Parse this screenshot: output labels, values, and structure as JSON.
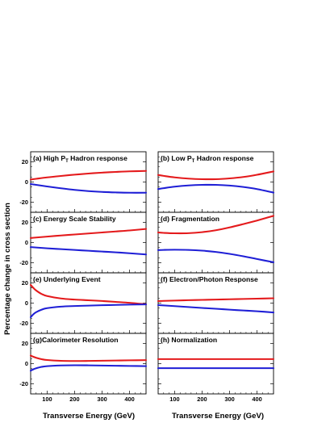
{
  "chart_data": {
    "type": "line",
    "layout": "4x2 grid of panels",
    "ylabel": "Percentage change in cross section",
    "xlabel": "Transverse Energy (GeV)",
    "xlim": [
      40,
      460
    ],
    "ylim": [
      -30,
      30
    ],
    "xticks": [
      100,
      200,
      300,
      400
    ],
    "yticks": [
      20,
      0,
      -20
    ],
    "grid": false,
    "colors": {
      "upper": "#e41a1c",
      "lower": "#1f1fd6"
    },
    "panels": [
      {
        "id": "a",
        "title_pre": "(a) High P",
        "title_sub": "T",
        "title_post": " Hadron response",
        "x": [
          40,
          60,
          100,
          150,
          200,
          250,
          300,
          350,
          400,
          460
        ],
        "upper": [
          2.5,
          3.2,
          4.6,
          6.0,
          7.3,
          8.4,
          9.3,
          10.0,
          10.6,
          11.0
        ],
        "lower": [
          -2.0,
          -2.8,
          -4.4,
          -6.2,
          -7.8,
          -9.0,
          -9.8,
          -10.3,
          -10.6,
          -10.6
        ]
      },
      {
        "id": "b",
        "title_pre": "(b) Low P",
        "title_sub": "T",
        "title_post": " Hadron response",
        "x": [
          40,
          60,
          100,
          150,
          200,
          250,
          300,
          350,
          400,
          460
        ],
        "upper": [
          7.0,
          6.1,
          4.6,
          3.4,
          2.8,
          2.8,
          3.6,
          5.0,
          7.2,
          10.5
        ],
        "lower": [
          -7.0,
          -6.1,
          -4.6,
          -3.4,
          -2.8,
          -2.8,
          -3.5,
          -4.9,
          -7.0,
          -10.5
        ]
      },
      {
        "id": "c",
        "title_pre": "(c) Energy Scale Stability",
        "title_sub": "",
        "title_post": "",
        "x": [
          40,
          60,
          100,
          150,
          200,
          250,
          300,
          350,
          400,
          460
        ],
        "upper": [
          4.5,
          5.0,
          5.9,
          7.0,
          8.0,
          9.0,
          10.0,
          11.0,
          12.0,
          13.5
        ],
        "lower": [
          -4.5,
          -4.9,
          -5.7,
          -6.5,
          -7.3,
          -8.1,
          -8.9,
          -9.7,
          -10.6,
          -11.8
        ]
      },
      {
        "id": "d",
        "title_pre": "(d) Fragmentation",
        "title_sub": "",
        "title_post": "",
        "x": [
          40,
          60,
          100,
          150,
          200,
          250,
          300,
          350,
          400,
          460
        ],
        "upper": [
          10.0,
          9.6,
          9.2,
          9.3,
          10.3,
          12.2,
          15.0,
          18.3,
          21.8,
          26.5
        ],
        "lower": [
          -7.5,
          -7.3,
          -7.1,
          -7.3,
          -8.0,
          -9.3,
          -11.2,
          -13.6,
          -16.3,
          -19.5
        ]
      },
      {
        "id": "e",
        "title_pre": "(e) Underlying Event",
        "title_sub": "",
        "title_post": "",
        "x": [
          40,
          50,
          60,
          80,
          100,
          150,
          200,
          250,
          300,
          350,
          400,
          460
        ],
        "upper": [
          18.0,
          15.0,
          12.5,
          9.0,
          7.0,
          4.6,
          3.5,
          2.8,
          2.1,
          1.2,
          0.3,
          -1.2
        ],
        "lower": [
          -14.0,
          -11.0,
          -9.0,
          -6.5,
          -5.0,
          -3.5,
          -2.9,
          -2.5,
          -2.1,
          -1.8,
          -1.5,
          -1.3
        ]
      },
      {
        "id": "f",
        "title_pre": "(f) Electron/Photon Response",
        "title_sub": "",
        "title_post": "",
        "x": [
          40,
          60,
          100,
          150,
          200,
          250,
          300,
          350,
          400,
          460
        ],
        "upper": [
          2.0,
          2.2,
          2.5,
          2.9,
          3.2,
          3.5,
          3.8,
          4.1,
          4.4,
          4.8
        ],
        "lower": [
          -2.0,
          -2.3,
          -3.0,
          -3.9,
          -4.8,
          -5.6,
          -6.5,
          -7.3,
          -8.1,
          -9.3
        ]
      },
      {
        "id": "g",
        "title_pre": "(g)Calorimeter Resolution",
        "title_sub": "",
        "title_post": "",
        "x": [
          40,
          50,
          60,
          80,
          100,
          150,
          200,
          250,
          300,
          350,
          400,
          460
        ],
        "upper": [
          8.0,
          6.8,
          5.8,
          4.4,
          3.6,
          2.8,
          2.6,
          2.7,
          2.9,
          3.1,
          3.3,
          3.5
        ],
        "lower": [
          -7.0,
          -5.6,
          -4.6,
          -3.2,
          -2.5,
          -1.8,
          -1.6,
          -1.7,
          -1.9,
          -2.1,
          -2.3,
          -2.5
        ]
      },
      {
        "id": "h",
        "title_pre": "(h) Normalization",
        "title_sub": "",
        "title_post": "",
        "x": [
          40,
          460
        ],
        "upper": [
          4.5,
          4.5
        ],
        "lower": [
          -4.5,
          -4.5
        ]
      }
    ]
  }
}
